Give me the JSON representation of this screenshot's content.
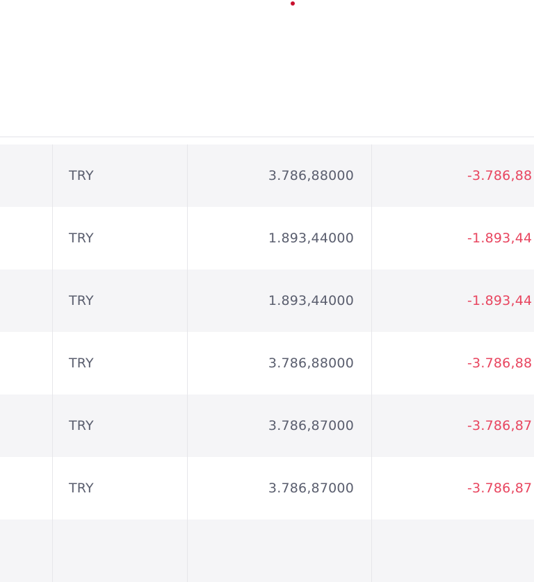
{
  "colors": {
    "negative": "#e8455f",
    "text": "#5a5e6e",
    "row_alt": "#f5f5f7",
    "indicator_dot": "#c8102e"
  },
  "rows": [
    {
      "currency": "TRY",
      "amount": "3.786,88000",
      "delta": "-3.786,88",
      "striped": true
    },
    {
      "currency": "TRY",
      "amount": "1.893,44000",
      "delta": "-1.893,44",
      "striped": false
    },
    {
      "currency": "TRY",
      "amount": "1.893,44000",
      "delta": "-1.893,44",
      "striped": true
    },
    {
      "currency": "TRY",
      "amount": "3.786,88000",
      "delta": "-3.786,88",
      "striped": false
    },
    {
      "currency": "TRY",
      "amount": "3.786,87000",
      "delta": "-3.786,87",
      "striped": true
    },
    {
      "currency": "TRY",
      "amount": "3.786,87000",
      "delta": "-3.786,87",
      "striped": false
    }
  ]
}
